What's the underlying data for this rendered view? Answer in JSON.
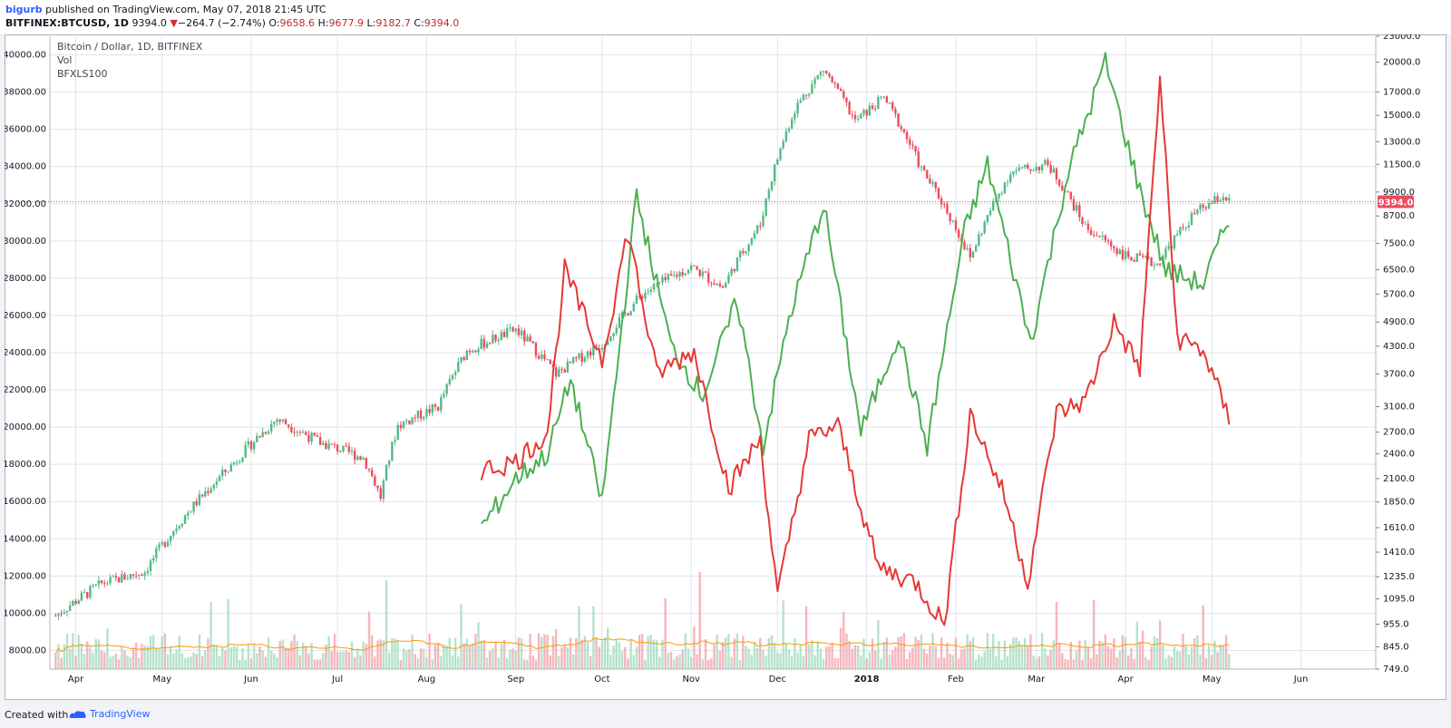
{
  "header": {
    "author": "bigurb",
    "published_text": " published on TradingView.com, May 07, 2018 21:45 UTC",
    "symbol": "BITFINEX:BTCUSD, 1D",
    "last": "9394.0",
    "down_arrow": "▼",
    "change": "−264.7 (−2.74%)",
    "o_label": "O:",
    "o_value": "9658.6",
    "h_label": "H:",
    "h_value": "9677.9",
    "l_label": "L:",
    "l_value": "9182.7",
    "c_label": "C:",
    "c_value": "9394.0"
  },
  "legend": {
    "main": "Bitcoin / Dollar, 1D, BITFINEX",
    "vol": "Vol",
    "indicator": "BFXLS100"
  },
  "footer": {
    "created_with": "Created with",
    "brand": "TradingView"
  },
  "price_badge": "9394.0",
  "chart_data": {
    "type": "line",
    "x_ticks": [
      "Apr",
      "May",
      "Jun",
      "Jul",
      "Aug",
      "Sep",
      "Oct",
      "Nov",
      "Dec",
      "2018",
      "Feb",
      "Mar",
      "Apr",
      "May",
      "Jun"
    ],
    "left_axis_ticks": [
      "40000.00",
      "38000.00",
      "36000.00",
      "34000.00",
      "32000.00",
      "30000.00",
      "28000.00",
      "26000.00",
      "24000.00",
      "22000.00",
      "20000.00",
      "18000.00",
      "16000.00",
      "14000.00",
      "12000.00",
      "10000.00",
      "8000.00"
    ],
    "right_axis_ticks": [
      "23000.0",
      "20000.0",
      "17000.0",
      "15000.0",
      "13000.0",
      "11500.0",
      "9900.0",
      "8700.0",
      "7500.0",
      "6500.0",
      "5700.0",
      "4900.0",
      "4300.0",
      "3700.0",
      "3100.0",
      "2700.0",
      "2400.0",
      "2100.0",
      "1850.0",
      "1610.0",
      "1410.0",
      "1235.0",
      "1095.0",
      "955.0",
      "845.0",
      "749.0"
    ],
    "ylim_right": [
      749,
      23000
    ],
    "ylim_left": [
      7000,
      41000
    ],
    "grid": true,
    "last_price_line": 9394.0,
    "series": [
      {
        "name": "Bitcoin / Dollar",
        "color": "#4caf50",
        "points": [
          [
            "2017-03-25",
            1000
          ],
          [
            "2017-04-10",
            1190
          ],
          [
            "2017-04-25",
            1270
          ],
          [
            "2017-05-10",
            1750
          ],
          [
            "2017-05-25",
            2250
          ],
          [
            "2017-06-10",
            2900
          ],
          [
            "2017-06-25",
            2550
          ],
          [
            "2017-07-10",
            2350
          ],
          [
            "2017-07-16",
            1900
          ],
          [
            "2017-07-22",
            2800
          ],
          [
            "2017-08-05",
            3100
          ],
          [
            "2017-08-15",
            4200
          ],
          [
            "2017-09-01",
            4700
          ],
          [
            "2017-09-15",
            3700
          ],
          [
            "2017-10-01",
            4350
          ],
          [
            "2017-10-15",
            5700
          ],
          [
            "2017-11-01",
            6600
          ],
          [
            "2017-11-12",
            5900
          ],
          [
            "2017-11-25",
            8300
          ],
          [
            "2017-12-07",
            15500
          ],
          [
            "2017-12-17",
            19200
          ],
          [
            "2017-12-28",
            14500
          ],
          [
            "2018-01-07",
            16500
          ],
          [
            "2018-01-20",
            11200
          ],
          [
            "2018-02-06",
            6900
          ],
          [
            "2018-02-20",
            11000
          ],
          [
            "2018-03-05",
            11500
          ],
          [
            "2018-03-18",
            8200
          ],
          [
            "2018-04-01",
            7000
          ],
          [
            "2018-04-12",
            6700
          ],
          [
            "2018-04-25",
            8800
          ],
          [
            "2018-05-05",
            9700
          ],
          [
            "2018-05-07",
            9394
          ]
        ]
      },
      {
        "name": "BFXLS100",
        "color": "#4caf50",
        "points": [
          [
            "2017-08-20",
            1610
          ],
          [
            "2017-09-01",
            2100
          ],
          [
            "2017-09-12",
            2400
          ],
          [
            "2017-09-20",
            3600
          ],
          [
            "2017-10-01",
            1850
          ],
          [
            "2017-10-13",
            9700
          ],
          [
            "2017-10-25",
            4300
          ],
          [
            "2017-11-05",
            3300
          ],
          [
            "2017-11-17",
            5500
          ],
          [
            "2017-11-26",
            2500
          ],
          [
            "2017-12-05",
            5000
          ],
          [
            "2017-12-17",
            9300
          ],
          [
            "2017-12-30",
            2700
          ],
          [
            "2018-01-12",
            4600
          ],
          [
            "2018-01-22",
            2500
          ],
          [
            "2018-02-04",
            8000
          ],
          [
            "2018-02-12",
            11500
          ],
          [
            "2018-02-27",
            4400
          ],
          [
            "2018-03-12",
            11000
          ],
          [
            "2018-03-25",
            20000
          ],
          [
            "2018-04-06",
            10000
          ],
          [
            "2018-04-15",
            6500
          ],
          [
            "2018-04-28",
            6000
          ],
          [
            "2018-05-07",
            8600
          ]
        ]
      },
      {
        "name": "BFXLS100",
        "color": "#e53935",
        "points": [
          [
            "2017-08-20",
            2200
          ],
          [
            "2017-09-01",
            2300
          ],
          [
            "2017-09-12",
            2700
          ],
          [
            "2017-09-18",
            6500
          ],
          [
            "2017-10-01",
            4000
          ],
          [
            "2017-10-10",
            8000
          ],
          [
            "2017-10-20",
            3700
          ],
          [
            "2017-11-02",
            4200
          ],
          [
            "2017-11-14",
            2000
          ],
          [
            "2017-11-25",
            2600
          ],
          [
            "2017-12-01",
            1110
          ],
          [
            "2017-12-12",
            2600
          ],
          [
            "2017-12-22",
            2800
          ],
          [
            "2018-01-05",
            1300
          ],
          [
            "2018-01-18",
            1200
          ],
          [
            "2018-01-28",
            955
          ],
          [
            "2018-02-06",
            3000
          ],
          [
            "2018-02-18",
            1900
          ],
          [
            "2018-02-26",
            1200
          ],
          [
            "2018-03-08",
            3000
          ],
          [
            "2018-03-18",
            3200
          ],
          [
            "2018-03-28",
            4900
          ],
          [
            "2018-04-06",
            3800
          ],
          [
            "2018-04-13",
            18500
          ],
          [
            "2018-04-19",
            4500
          ],
          [
            "2018-04-28",
            4200
          ],
          [
            "2018-05-07",
            2900
          ]
        ]
      }
    ]
  }
}
